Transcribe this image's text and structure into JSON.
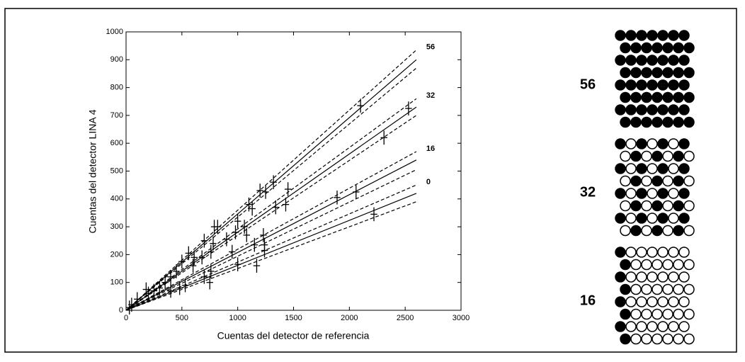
{
  "chart_data": {
    "type": "scatter",
    "xlabel": "Cuentas del detector de referencia",
    "ylabel": "Cuentas del detector LINA 4",
    "xlim": [
      0,
      3000
    ],
    "ylim": [
      0,
      1000
    ],
    "xticks": [
      0,
      500,
      1000,
      1500,
      2000,
      2500,
      3000
    ],
    "yticks": [
      0,
      100,
      200,
      300,
      400,
      500,
      600,
      700,
      800,
      900,
      1000
    ],
    "color": "#000000",
    "x": [
      2100,
      2530,
      2310,
      1200,
      1250,
      1320,
      1450,
      1100,
      1130,
      1340,
      1430,
      1000,
      1060,
      790,
      820,
      980,
      1080,
      1230,
      1240,
      1240,
      1150,
      1170,
      1000,
      950,
      900,
      780,
      760,
      700,
      680,
      610,
      560,
      600,
      500,
      450,
      400,
      350,
      300,
      250,
      200,
      180,
      100,
      50,
      30,
      750,
      700,
      760,
      530,
      480,
      400,
      1890,
      2060,
      2220
    ],
    "y": [
      735,
      725,
      620,
      430,
      425,
      460,
      435,
      380,
      365,
      370,
      380,
      320,
      300,
      300,
      300,
      280,
      270,
      270,
      235,
      215,
      235,
      160,
      165,
      210,
      255,
      240,
      210,
      250,
      190,
      190,
      205,
      160,
      175,
      140,
      120,
      100,
      80,
      70,
      60,
      75,
      40,
      20,
      10,
      100,
      120,
      140,
      90,
      80,
      70,
      405,
      425,
      345
    ],
    "xerr": 30,
    "yerr": 25,
    "lines": [
      {
        "name": "56",
        "x": [
          0,
          2600
        ],
        "values": [
          0,
          900
        ],
        "upper": [
          0,
          935
        ],
        "lower": [
          0,
          870
        ]
      },
      {
        "name": "32",
        "x": [
          0,
          2600
        ],
        "values": [
          0,
          730
        ],
        "upper": [
          0,
          760
        ],
        "lower": [
          0,
          700
        ]
      },
      {
        "name": "16",
        "x": [
          0,
          2600
        ],
        "values": [
          0,
          540
        ],
        "upper": [
          0,
          570
        ],
        "lower": [
          0,
          505
        ]
      },
      {
        "name": "0",
        "x": [
          0,
          2600
        ],
        "values": [
          0,
          420
        ],
        "upper": [
          0,
          450
        ],
        "lower": [
          0,
          390
        ]
      }
    ]
  },
  "diagram": {
    "labels": [
      "56",
      "32",
      "16"
    ]
  }
}
